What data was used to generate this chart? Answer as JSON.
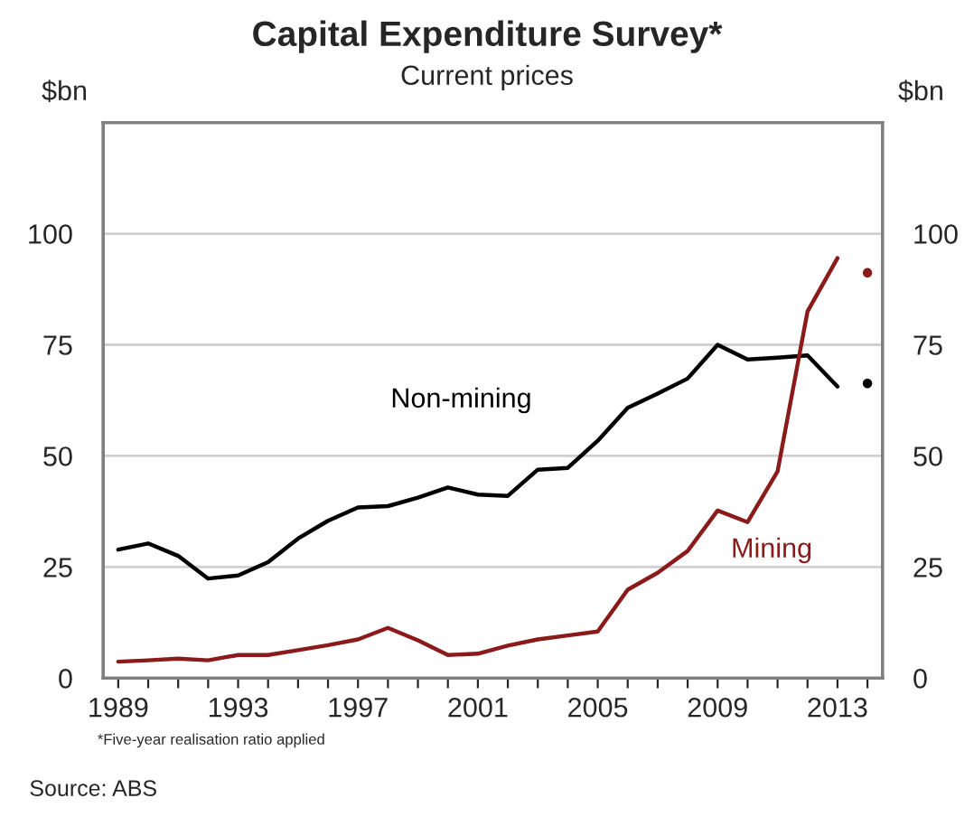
{
  "chart_data": {
    "type": "line",
    "title": "Capital Expenditure Survey*",
    "subtitle": "Current prices",
    "ylabel": "$bn",
    "y2label": "$bn",
    "x": [
      1989,
      1990,
      1991,
      1992,
      1993,
      1994,
      1995,
      1996,
      1997,
      1998,
      1999,
      2000,
      2001,
      2002,
      2003,
      2004,
      2005,
      2006,
      2007,
      2008,
      2009,
      2010,
      2011,
      2012,
      2013
    ],
    "series": [
      {
        "name": "Non-mining",
        "color": "#000000",
        "values": [
          28.9,
          30.3,
          27.5,
          22.4,
          23.1,
          26.1,
          31.4,
          35.4,
          38.4,
          38.7,
          40.6,
          42.9,
          41.3,
          41.0,
          46.9,
          47.3,
          53.4,
          60.8,
          64.0,
          67.4,
          75.0,
          71.7,
          72.1,
          72.6,
          65.6
        ]
      },
      {
        "name": "Mining",
        "color": "#8b1a1a",
        "values": [
          3.7,
          4.0,
          4.4,
          4.0,
          5.2,
          5.2,
          6.3,
          7.4,
          8.7,
          11.3,
          8.5,
          5.2,
          5.5,
          7.3,
          8.7,
          9.6,
          10.5,
          19.9,
          23.7,
          28.6,
          37.7,
          35.1,
          46.5,
          82.5,
          94.5
        ]
      },
      {
        "type": "scatter",
        "marker": "circle",
        "color": "#000000",
        "x": [
          2014
        ],
        "values": [
          66.3
        ]
      },
      {
        "type": "scatter",
        "marker": "circle",
        "color": "#8b1a1a",
        "x": [
          2014
        ],
        "values": [
          91.2
        ]
      }
    ],
    "xlim": [
      1988.5,
      2014.5
    ],
    "xticks": [
      1989,
      {
        "value": 1990,
        "label": null
      },
      {
        "value": 1991,
        "label": null
      },
      {
        "value": 1992,
        "label": null
      },
      1993,
      {
        "value": 1994,
        "label": null
      },
      {
        "value": 1995,
        "label": null
      },
      {
        "value": 1996,
        "label": null
      },
      1997,
      {
        "value": 1998,
        "label": null
      },
      {
        "value": 1999,
        "label": null
      },
      {
        "value": 2000,
        "label": null
      },
      2001,
      {
        "value": 2002,
        "label": null
      },
      {
        "value": 2003,
        "label": null
      },
      {
        "value": 2004,
        "label": null
      },
      2005,
      {
        "value": 2006,
        "label": null
      },
      {
        "value": 2007,
        "label": null
      },
      {
        "value": 2008,
        "label": null
      },
      2009,
      {
        "value": 2010,
        "label": null
      },
      {
        "value": 2011,
        "label": null
      },
      {
        "value": 2012,
        "label": null
      },
      2013,
      {
        "value": 2014,
        "label": null
      }
    ],
    "ylim": [
      0,
      125
    ],
    "yticks": [
      0,
      25,
      50,
      75,
      100
    ],
    "y2lim": [
      0,
      125
    ],
    "y2ticks": [
      0,
      25,
      50,
      75,
      100
    ],
    "grid": "y",
    "marker": "none",
    "line_style": "solid",
    "legend": false,
    "annotations": [
      "*Five-year realisation ratio applied",
      "Source: ABS"
    ]
  }
}
